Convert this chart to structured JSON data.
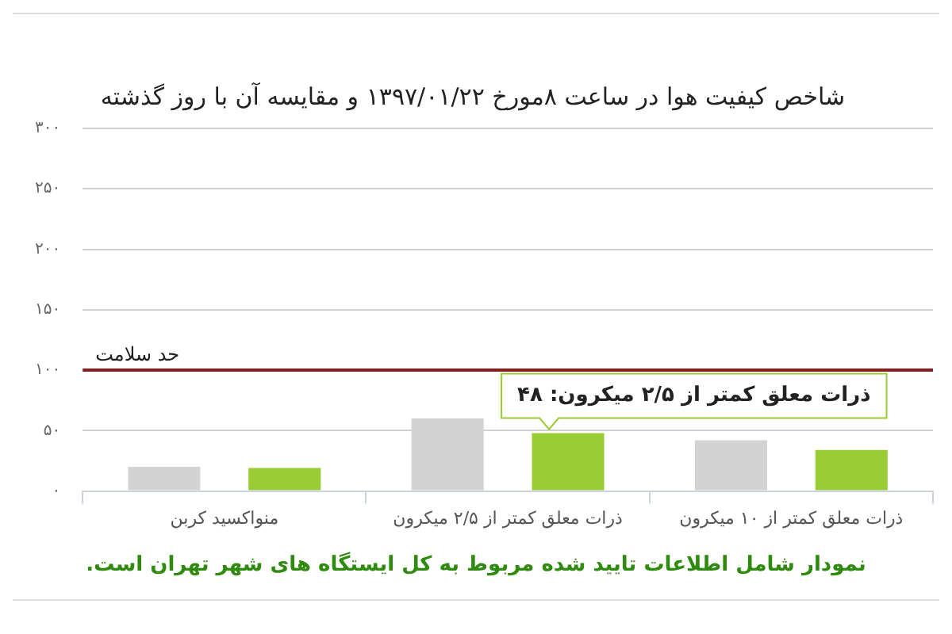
{
  "chart_data": {
    "type": "bar",
    "title": "شاخص کیفیت هوا در ساعت ۸مورخ ۱۳۹۷/۰۱/۲۲ و مقایسه آن با روز گذشته",
    "categories": [
      "منواکسید کربن",
      "ذرات معلق کمتر از ۲/۵ میکرون",
      "ذرات معلق کمتر از ۱۰ میکرون"
    ],
    "series": [
      {
        "color": "#d3d3d3",
        "values": [
          20,
          60,
          42
        ]
      },
      {
        "color": "#99cc33",
        "values": [
          19,
          48,
          34
        ]
      }
    ],
    "ylim": [
      0,
      300
    ],
    "yticks": [
      {
        "value": 0,
        "label": "۰"
      },
      {
        "value": 50,
        "label": "۵۰"
      },
      {
        "value": 100,
        "label": "۱۰۰"
      },
      {
        "value": 150,
        "label": "۱۵۰"
      },
      {
        "value": 200,
        "label": "۲۰۰"
      },
      {
        "value": 250,
        "label": "۲۵۰"
      },
      {
        "value": 300,
        "label": "۳۰۰"
      }
    ],
    "grid": "y",
    "legend": false,
    "ref_lines": [
      {
        "axis": "y",
        "value": 100,
        "label": "حد سلامت",
        "color": "#8b1a1a"
      }
    ],
    "annotations": [
      "ذرات معلق کمتر از ۲/۵ میکرون: ۴۸",
      "نمودار شامل اطلاعات تایید شده مربوط به کل ایستگاه های شهر تهران است."
    ]
  }
}
